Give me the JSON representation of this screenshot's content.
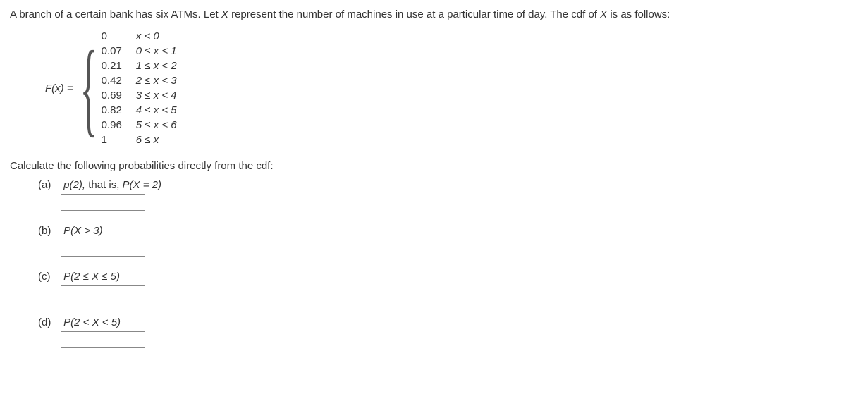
{
  "intro": {
    "prefix": "A branch of a certain bank has six ATMs. Let ",
    "var1": "X",
    "mid": " represent the number of machines in use at a particular time of day. The cdf of ",
    "var2": "X",
    "suffix": " is as follows:"
  },
  "cdf": {
    "lhs": "F(x) = ",
    "pieces": [
      {
        "value": "0",
        "condition": "x < 0"
      },
      {
        "value": "0.07",
        "condition": "0 ≤ x < 1"
      },
      {
        "value": "0.21",
        "condition": "1 ≤ x < 2"
      },
      {
        "value": "0.42",
        "condition": "2 ≤ x < 3"
      },
      {
        "value": "0.69",
        "condition": "3 ≤ x < 4"
      },
      {
        "value": "0.82",
        "condition": "4 ≤ x < 5"
      },
      {
        "value": "0.96",
        "condition": "5 ≤ x < 6"
      },
      {
        "value": "1",
        "condition": "6 ≤ x"
      }
    ]
  },
  "instruction": "Calculate the following probabilities directly from the cdf:",
  "parts": {
    "a": {
      "label": "(a)",
      "text_before": "p(2), ",
      "text_plain": "that is, ",
      "text_after": "P(X = 2)"
    },
    "b": {
      "label": "(b)",
      "text": "P(X > 3)"
    },
    "c": {
      "label": "(c)",
      "text": "P(2 ≤ X ≤ 5)"
    },
    "d": {
      "label": "(d)",
      "text": "P(2 < X < 5)"
    }
  }
}
